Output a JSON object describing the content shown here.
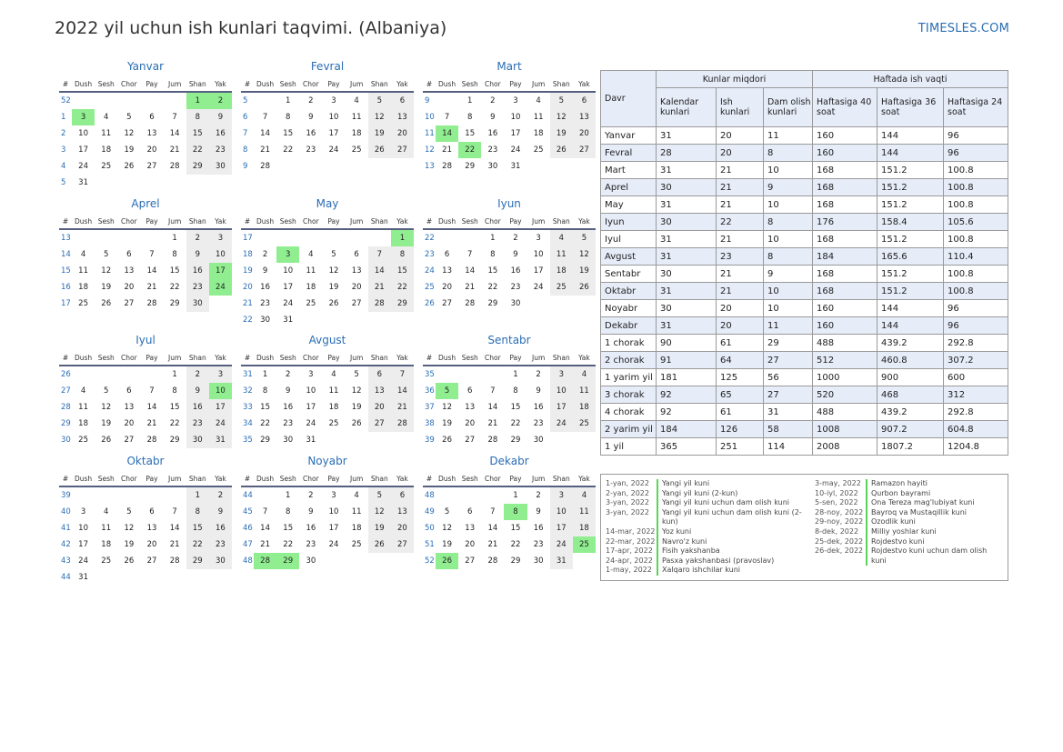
{
  "title": "2022 yil uchun ish kunlari taqvimi. (Albaniya)",
  "brand": "TIMESLES.COM",
  "colors": {
    "accent": "#2a6db5",
    "holiday": "#90ee90",
    "weekend": "#ededed",
    "header_bg": "#e6ecf8"
  },
  "calendar": {
    "weekday_headers": [
      "#",
      "Dush",
      "Sesh",
      "Chor",
      "Pay",
      "Jum",
      "Shan",
      "Yak"
    ],
    "months": [
      {
        "name": "Yanvar",
        "first_dow": 5,
        "days": 31,
        "first_week": 52,
        "holidays": [
          1,
          2,
          3
        ]
      },
      {
        "name": "Fevral",
        "first_dow": 1,
        "days": 28,
        "first_week": 5,
        "holidays": []
      },
      {
        "name": "Mart",
        "first_dow": 1,
        "days": 31,
        "first_week": 9,
        "holidays": [
          14,
          22
        ]
      },
      {
        "name": "Aprel",
        "first_dow": 4,
        "days": 30,
        "first_week": 13,
        "holidays": [
          17,
          24
        ]
      },
      {
        "name": "May",
        "first_dow": 6,
        "days": 31,
        "first_week": 17,
        "holidays": [
          1,
          3
        ]
      },
      {
        "name": "Iyun",
        "first_dow": 2,
        "days": 30,
        "first_week": 22,
        "holidays": []
      },
      {
        "name": "Iyul",
        "first_dow": 4,
        "days": 31,
        "first_week": 26,
        "holidays": [
          10
        ]
      },
      {
        "name": "Avgust",
        "first_dow": 0,
        "days": 31,
        "first_week": 31,
        "holidays": []
      },
      {
        "name": "Sentabr",
        "first_dow": 3,
        "days": 30,
        "first_week": 35,
        "holidays": [
          5
        ]
      },
      {
        "name": "Oktabr",
        "first_dow": 5,
        "days": 31,
        "first_week": 39,
        "holidays": []
      },
      {
        "name": "Noyabr",
        "first_dow": 1,
        "days": 30,
        "first_week": 44,
        "holidays": [
          28,
          29
        ]
      },
      {
        "name": "Dekabr",
        "first_dow": 3,
        "days": 31,
        "first_week": 48,
        "holidays": [
          8,
          25,
          26
        ]
      }
    ]
  },
  "summary": {
    "period_label": "Davr",
    "group1": "Kunlar miqdori",
    "group2": "Haftada ish vaqti",
    "columns": [
      "Kalendar kunlari",
      "Ish kunlari",
      "Dam olish kunlari",
      "Haftasiga 40 soat",
      "Haftasiga 36 soat",
      "Haftasiga 24 soat"
    ],
    "rows": [
      [
        "Yanvar",
        "31",
        "20",
        "11",
        "160",
        "144",
        "96"
      ],
      [
        "Fevral",
        "28",
        "20",
        "8",
        "160",
        "144",
        "96"
      ],
      [
        "Mart",
        "31",
        "21",
        "10",
        "168",
        "151.2",
        "100.8"
      ],
      [
        "Aprel",
        "30",
        "21",
        "9",
        "168",
        "151.2",
        "100.8"
      ],
      [
        "May",
        "31",
        "21",
        "10",
        "168",
        "151.2",
        "100.8"
      ],
      [
        "Iyun",
        "30",
        "22",
        "8",
        "176",
        "158.4",
        "105.6"
      ],
      [
        "Iyul",
        "31",
        "21",
        "10",
        "168",
        "151.2",
        "100.8"
      ],
      [
        "Avgust",
        "31",
        "23",
        "8",
        "184",
        "165.6",
        "110.4"
      ],
      [
        "Sentabr",
        "30",
        "21",
        "9",
        "168",
        "151.2",
        "100.8"
      ],
      [
        "Oktabr",
        "31",
        "21",
        "10",
        "168",
        "151.2",
        "100.8"
      ],
      [
        "Noyabr",
        "30",
        "20",
        "10",
        "160",
        "144",
        "96"
      ],
      [
        "Dekabr",
        "31",
        "20",
        "11",
        "160",
        "144",
        "96"
      ],
      [
        "1 chorak",
        "90",
        "61",
        "29",
        "488",
        "439.2",
        "292.8"
      ],
      [
        "2 chorak",
        "91",
        "64",
        "27",
        "512",
        "460.8",
        "307.2"
      ],
      [
        "1 yarim yil",
        "181",
        "125",
        "56",
        "1000",
        "900",
        "600"
      ],
      [
        "3 chorak",
        "92",
        "65",
        "27",
        "520",
        "468",
        "312"
      ],
      [
        "4 chorak",
        "92",
        "61",
        "31",
        "488",
        "439.2",
        "292.8"
      ],
      [
        "2 yarim yil",
        "184",
        "126",
        "58",
        "1008",
        "907.2",
        "604.8"
      ],
      [
        "1 yil",
        "365",
        "251",
        "114",
        "2008",
        "1807.2",
        "1204.8"
      ]
    ]
  },
  "holidays": {
    "left": [
      {
        "date": "1-yan, 2022",
        "name": "Yangi yil kuni"
      },
      {
        "date": "2-yan, 2022",
        "name": "Yangi yil kuni (2-kun)"
      },
      {
        "date": "3-yan, 2022",
        "name": "Yangi yil kuni uchun dam olish kuni"
      },
      {
        "date": "3-yan, 2022",
        "name": "Yangi yil kuni uchun dam olish kuni (2-kun)"
      },
      {
        "date": "14-mar, 2022",
        "name": "Yoz kuni"
      },
      {
        "date": "22-mar, 2022",
        "name": "Navro'z kuni"
      },
      {
        "date": "17-apr, 2022",
        "name": "Fisih yakshanba"
      },
      {
        "date": "24-apr, 2022",
        "name": "Pasxa yakshanbasi (pravoslav)"
      },
      {
        "date": "1-may, 2022",
        "name": "Xalqaro ishchilar kuni"
      }
    ],
    "right": [
      {
        "date": "3-may, 2022",
        "name": "Ramazon hayiti"
      },
      {
        "date": "10-iyl, 2022",
        "name": "Qurbon bayrami"
      },
      {
        "date": "5-sen, 2022",
        "name": "Ona Tereza mag'lubiyat kuni"
      },
      {
        "date": "28-noy, 2022",
        "name": "Bayroq va Mustaqillik kuni"
      },
      {
        "date": "29-noy, 2022",
        "name": "Ozodlik kuni"
      },
      {
        "date": "8-dek, 2022",
        "name": "Milliy yoshlar kuni"
      },
      {
        "date": "25-dek, 2022",
        "name": "Rojdestvo kuni"
      },
      {
        "date": "26-dek, 2022",
        "name": "Rojdestvo kuni uchun dam olish kuni"
      }
    ]
  }
}
